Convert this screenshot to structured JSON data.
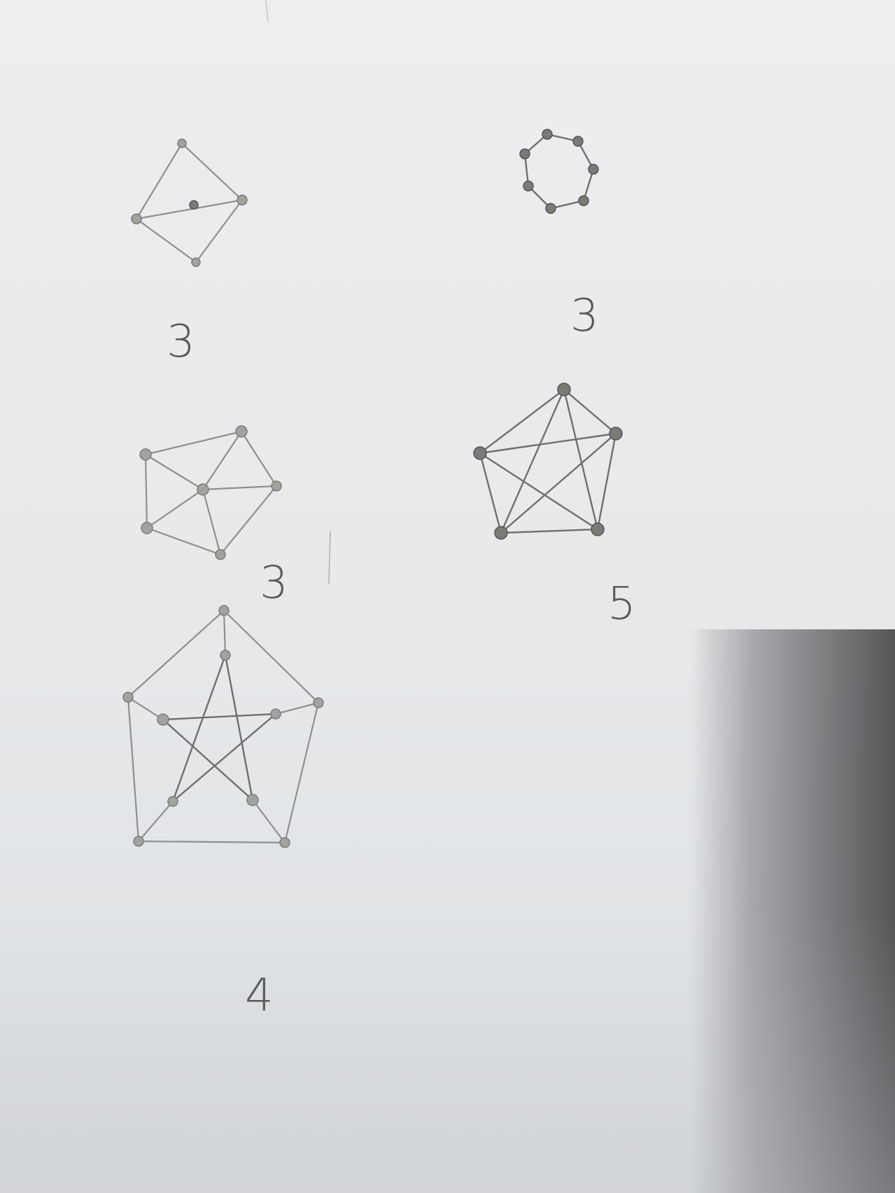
{
  "graphs": [
    {
      "id": "diamond",
      "label": "3"
    },
    {
      "id": "heptagon",
      "label": "3"
    },
    {
      "id": "wheel",
      "label": "3"
    },
    {
      "id": "complete-k5",
      "label": "5"
    },
    {
      "id": "petersen",
      "label": "4"
    }
  ]
}
